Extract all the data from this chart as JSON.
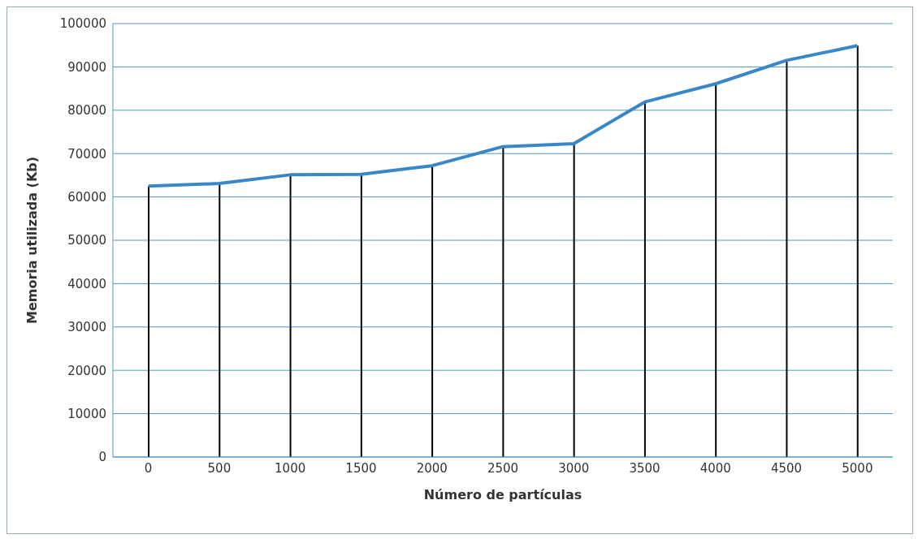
{
  "chart_data": {
    "type": "line",
    "xlabel": "Número de partículas",
    "ylabel": "Memoria  utilizada  (Kb)",
    "categories": [
      "0",
      "500",
      "1000",
      "1500",
      "2000",
      "2500",
      "3000",
      "3500",
      "4000",
      "4500",
      "5000"
    ],
    "series": [
      {
        "type": "bar",
        "color": "#000000",
        "values": [
          62500,
          63100,
          65100,
          65200,
          67200,
          71600,
          72300,
          81900,
          86100,
          91500,
          94900
        ]
      },
      {
        "color": "#3a87c8",
        "marker": "none",
        "values": [
          62500,
          63100,
          65100,
          65200,
          67200,
          71600,
          72300,
          81900,
          86100,
          91500,
          94900
        ]
      }
    ],
    "ylim": [
      0,
      100000
    ],
    "yticks": [
      0,
      10000,
      20000,
      30000,
      40000,
      50000,
      60000,
      70000,
      80000,
      90000,
      100000
    ],
    "grid": "y",
    "legend": false
  }
}
